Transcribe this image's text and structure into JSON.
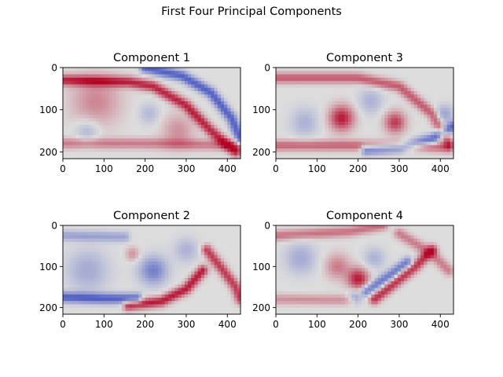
{
  "figure": {
    "suptitle": "First Four Principal Components"
  },
  "colors": {
    "cold": "#3b4cc0",
    "neutral": "#dddddd",
    "warm": "#b40426",
    "background": "#e3d8d3"
  },
  "chart_data": [
    {
      "type": "heatmap",
      "title": "Component 1",
      "colormap": "coolwarm",
      "xlim": [
        0,
        432
      ],
      "ylim": [
        216,
        0
      ],
      "xticks": [
        0,
        100,
        200,
        300,
        400
      ],
      "yticks": [
        0,
        100,
        200
      ],
      "features": [
        {
          "kind": "band",
          "path": [
            [
              0,
              30
            ],
            [
              160,
              34
            ],
            [
              220,
              45
            ],
            [
              300,
              90
            ],
            [
              360,
              150
            ],
            [
              420,
              200
            ]
          ],
          "value": 0.85
        },
        {
          "kind": "band",
          "path": [
            [
              200,
              0
            ],
            [
              290,
              20
            ],
            [
              360,
              60
            ],
            [
              410,
              120
            ],
            [
              432,
              170
            ]
          ],
          "value": -0.85
        },
        {
          "kind": "band",
          "path": [
            [
              0,
              180
            ],
            [
              200,
              180
            ],
            [
              300,
              182
            ],
            [
              430,
              185
            ]
          ],
          "value": 0.45
        },
        {
          "kind": "blob",
          "center": [
            80,
            80
          ],
          "radius": 70,
          "value": 0.4
        },
        {
          "kind": "blob",
          "center": [
            280,
            150
          ],
          "radius": 45,
          "value": 0.35
        },
        {
          "kind": "blob",
          "center": [
            60,
            150
          ],
          "radius": 35,
          "value": -0.3
        },
        {
          "kind": "blob",
          "center": [
            210,
            110
          ],
          "radius": 30,
          "value": -0.25
        }
      ]
    },
    {
      "type": "heatmap",
      "title": "Component 3",
      "colormap": "coolwarm",
      "xlim": [
        0,
        432
      ],
      "ylim": [
        216,
        0
      ],
      "xticks": [
        0,
        100,
        200,
        300,
        400
      ],
      "yticks": [
        0,
        100,
        200
      ],
      "features": [
        {
          "kind": "band",
          "path": [
            [
              0,
              25
            ],
            [
              200,
              25
            ],
            [
              300,
              45
            ],
            [
              380,
              110
            ],
            [
              420,
              180
            ]
          ],
          "value": 0.6
        },
        {
          "kind": "band",
          "path": [
            [
              0,
              185
            ],
            [
              200,
              185
            ],
            [
              330,
              185
            ],
            [
              420,
              190
            ]
          ],
          "value": 0.55
        },
        {
          "kind": "band",
          "path": [
            [
              220,
              195
            ],
            [
              300,
              190
            ],
            [
              380,
              170
            ],
            [
              430,
              140
            ]
          ],
          "value": -0.8
        },
        {
          "kind": "blob",
          "center": [
            160,
            120
          ],
          "radius": 35,
          "value": 0.9
        },
        {
          "kind": "blob",
          "center": [
            290,
            130
          ],
          "radius": 30,
          "value": 0.75
        },
        {
          "kind": "blob",
          "center": [
            70,
            130
          ],
          "radius": 40,
          "value": -0.3
        },
        {
          "kind": "blob",
          "center": [
            230,
            80
          ],
          "radius": 35,
          "value": -0.3
        },
        {
          "kind": "blob",
          "center": [
            410,
            110
          ],
          "radius": 25,
          "value": -0.4
        }
      ]
    },
    {
      "type": "heatmap",
      "title": "Component 2",
      "colormap": "coolwarm",
      "xlim": [
        0,
        432
      ],
      "ylim": [
        216,
        0
      ],
      "xticks": [
        0,
        100,
        200,
        300,
        400
      ],
      "yticks": [
        0,
        100,
        200
      ],
      "features": [
        {
          "kind": "band",
          "path": [
            [
              0,
              175
            ],
            [
              100,
              178
            ],
            [
              180,
              178
            ]
          ],
          "value": -0.85
        },
        {
          "kind": "band",
          "path": [
            [
              160,
              195
            ],
            [
              240,
              185
            ],
            [
              300,
              155
            ],
            [
              340,
              110
            ]
          ],
          "value": 0.9
        },
        {
          "kind": "band",
          "path": [
            [
              350,
              60
            ],
            [
              390,
              110
            ],
            [
              420,
              150
            ],
            [
              432,
              180
            ]
          ],
          "value": 0.75
        },
        {
          "kind": "band",
          "path": [
            [
              0,
              25
            ],
            [
              150,
              28
            ]
          ],
          "value": -0.4
        },
        {
          "kind": "blob",
          "center": [
            220,
            110
          ],
          "radius": 40,
          "value": -0.65
        },
        {
          "kind": "blob",
          "center": [
            60,
            110
          ],
          "radius": 60,
          "value": -0.35
        },
        {
          "kind": "blob",
          "center": [
            300,
            60
          ],
          "radius": 35,
          "value": -0.3
        },
        {
          "kind": "blob",
          "center": [
            170,
            70
          ],
          "radius": 20,
          "value": 0.35
        }
      ]
    },
    {
      "type": "heatmap",
      "title": "Component 4",
      "colormap": "coolwarm",
      "xlim": [
        0,
        432
      ],
      "ylim": [
        216,
        0
      ],
      "xticks": [
        0,
        100,
        200,
        300,
        400
      ],
      "yticks": [
        0,
        100,
        200
      ],
      "features": [
        {
          "kind": "band",
          "path": [
            [
              0,
              25
            ],
            [
              180,
              15
            ],
            [
              260,
              0
            ]
          ],
          "value": 0.5
        },
        {
          "kind": "band",
          "path": [
            [
              300,
              20
            ],
            [
              380,
              70
            ],
            [
              420,
              110
            ]
          ],
          "value": 0.45
        },
        {
          "kind": "band",
          "path": [
            [
              240,
              180
            ],
            [
              290,
              140
            ],
            [
              340,
              100
            ],
            [
              380,
              60
            ]
          ],
          "value": 0.8
        },
        {
          "kind": "band",
          "path": [
            [
              220,
              160
            ],
            [
              280,
              120
            ],
            [
              320,
              90
            ]
          ],
          "value": -0.7
        },
        {
          "kind": "blob",
          "center": [
            200,
            130
          ],
          "radius": 30,
          "value": 0.9
        },
        {
          "kind": "blob",
          "center": [
            150,
            100
          ],
          "radius": 35,
          "value": 0.45
        },
        {
          "kind": "blob",
          "center": [
            60,
            80
          ],
          "radius": 45,
          "value": -0.35
        },
        {
          "kind": "blob",
          "center": [
            240,
            80
          ],
          "radius": 30,
          "value": -0.3
        },
        {
          "kind": "blob",
          "center": [
            190,
            175
          ],
          "radius": 20,
          "value": -0.45
        },
        {
          "kind": "band",
          "path": [
            [
              0,
              180
            ],
            [
              180,
              182
            ]
          ],
          "value": 0.35
        }
      ]
    }
  ]
}
